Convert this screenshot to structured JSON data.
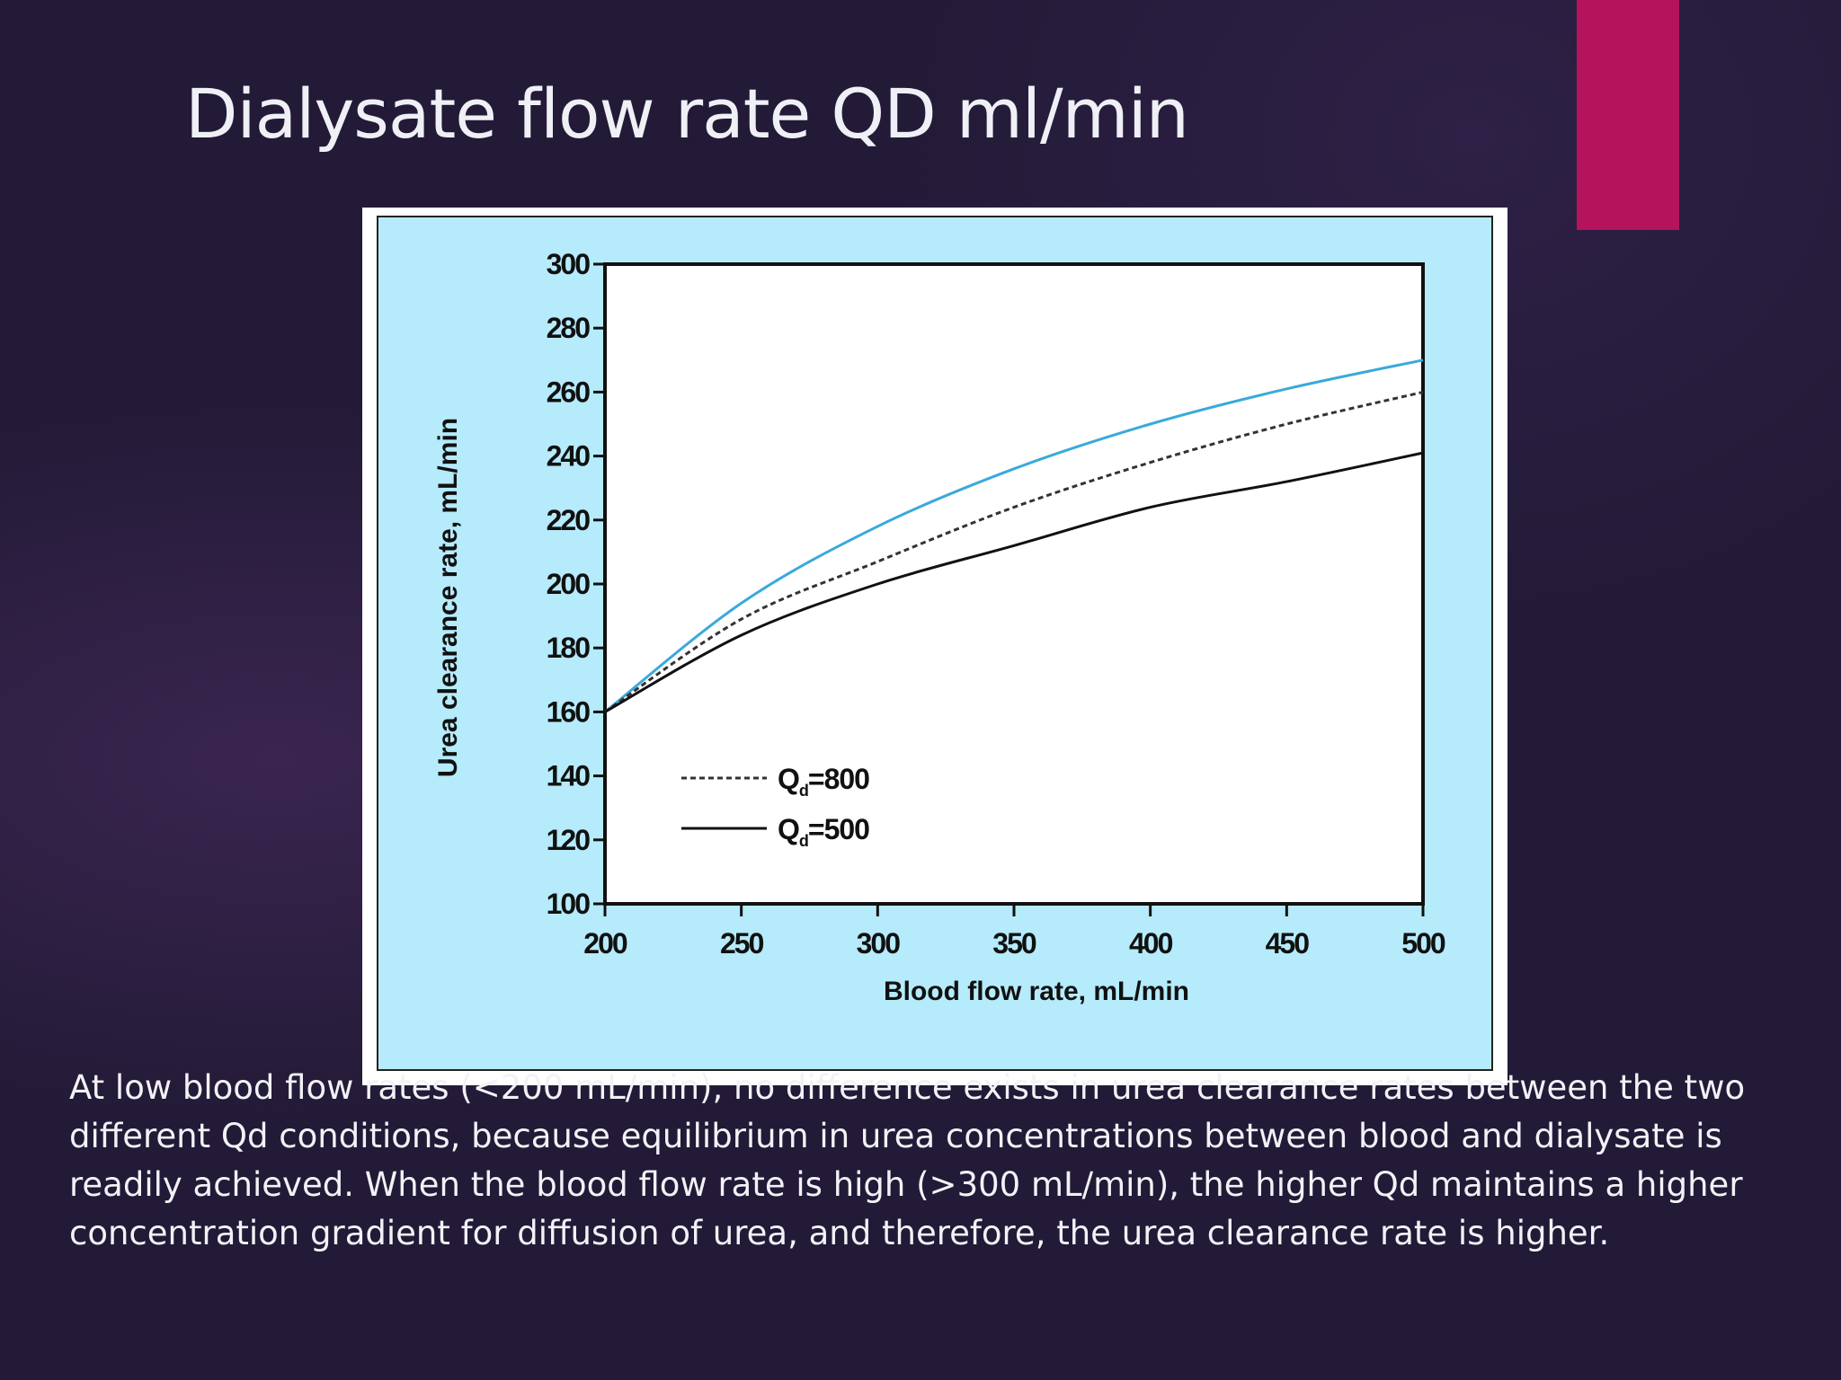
{
  "slide": {
    "title": "Dialysate flow rate QD ml/min",
    "caption": "At low blood flow rates (<200 mL/min), no difference exists in urea clearance rates between the two different Qd conditions, because equilibrium in urea concentrations between blood and dialysate is readily achieved. When the blood flow rate is high (>300 mL/min), the higher Qd maintains a higher concentration gradient for diffusion of urea, and therefore, the urea clearance rate is higher.",
    "accent_color": "#b5145c"
  },
  "chart_data": {
    "type": "line",
    "xlabel": "Blood flow rate, mL/min",
    "ylabel": "Urea clearance rate, mL/min",
    "xlim": [
      200,
      500
    ],
    "ylim": [
      100,
      300
    ],
    "xticks": [
      200,
      250,
      300,
      350,
      400,
      450,
      500
    ],
    "yticks": [
      100,
      120,
      140,
      160,
      180,
      200,
      220,
      240,
      260,
      280,
      300
    ],
    "legend_position": "lower-left",
    "background_color": "#b5ebfb",
    "plot_color": "#ffffff",
    "series": [
      {
        "style": "solid",
        "color": "#3aa9dc",
        "x": [
          200,
          250,
          300,
          350,
          400,
          450,
          500
        ],
        "y": [
          160,
          194,
          218,
          236,
          250,
          261,
          270
        ]
      },
      {
        "name": "Qd=800",
        "legend_main": "Q",
        "legend_sub": "d",
        "legend_value": "=800",
        "style": "dashed",
        "color": "#333333",
        "x": [
          200,
          250,
          300,
          350,
          400,
          450,
          500
        ],
        "y": [
          160,
          189,
          207,
          224,
          238,
          250,
          260
        ]
      },
      {
        "name": "Qd=500",
        "legend_main": "Q",
        "legend_sub": "d",
        "legend_value": "=500",
        "style": "solid",
        "color": "#111111",
        "x": [
          200,
          250,
          300,
          350,
          400,
          450,
          500
        ],
        "y": [
          160,
          184,
          200,
          212,
          224,
          232,
          241
        ]
      }
    ]
  }
}
